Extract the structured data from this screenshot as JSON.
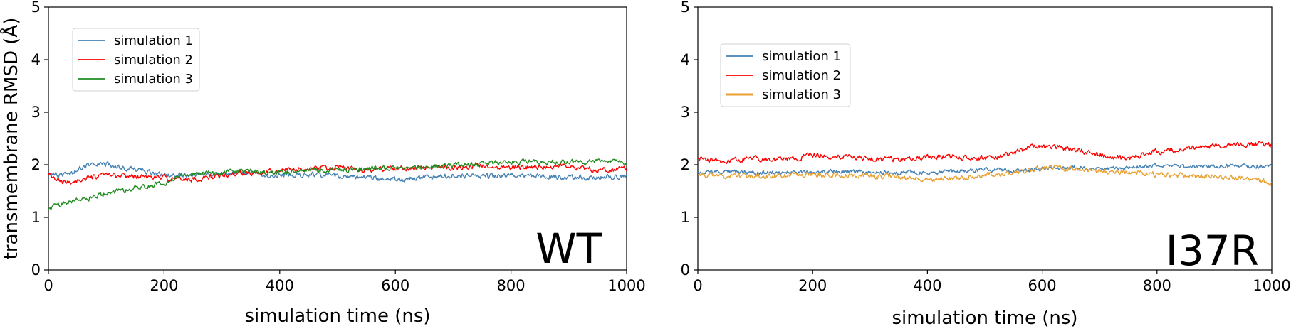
{
  "chart_data": [
    {
      "type": "line",
      "panel_label": "WT",
      "xlabel": "simulation time (ns)",
      "ylabel": "transmembrane RMSD (Å)",
      "xlim": [
        0,
        1000
      ],
      "ylim": [
        0,
        5
      ],
      "xticks": [
        0,
        200,
        400,
        600,
        800,
        1000
      ],
      "yticks": [
        0,
        1,
        2,
        3,
        4,
        5
      ],
      "grid": false,
      "legend_position": "top-left",
      "series": [
        {
          "name": "simulation 1",
          "color": "#4682b4",
          "noise": 0.06,
          "x": [
            0,
            20,
            40,
            60,
            80,
            100,
            130,
            160,
            200,
            250,
            300,
            350,
            400,
            450,
            500,
            550,
            600,
            650,
            700,
            750,
            800,
            850,
            900,
            950,
            1000
          ],
          "y": [
            1.85,
            1.8,
            1.85,
            1.95,
            2.05,
            2.0,
            1.95,
            1.9,
            1.8,
            1.8,
            1.82,
            1.85,
            1.8,
            1.82,
            1.78,
            1.75,
            1.72,
            1.75,
            1.8,
            1.78,
            1.8,
            1.78,
            1.76,
            1.75,
            1.78
          ]
        },
        {
          "name": "simulation 2",
          "color": "#ff0000",
          "noise": 0.06,
          "x": [
            0,
            25,
            50,
            100,
            150,
            200,
            250,
            300,
            350,
            400,
            450,
            500,
            550,
            600,
            650,
            700,
            750,
            800,
            850,
            900,
            950,
            1000
          ],
          "y": [
            1.8,
            1.65,
            1.7,
            1.8,
            1.78,
            1.75,
            1.72,
            1.8,
            1.85,
            1.9,
            1.92,
            1.95,
            1.9,
            1.92,
            1.95,
            1.95,
            1.98,
            1.95,
            1.95,
            1.98,
            1.9,
            1.92
          ]
        },
        {
          "name": "simulation 3",
          "color": "#228b22",
          "noise": 0.06,
          "x": [
            0,
            30,
            60,
            100,
            150,
            200,
            230,
            260,
            300,
            350,
            400,
            450,
            500,
            550,
            600,
            650,
            700,
            750,
            800,
            850,
            900,
            950,
            1000
          ],
          "y": [
            1.15,
            1.3,
            1.35,
            1.45,
            1.55,
            1.65,
            1.8,
            1.85,
            1.85,
            1.88,
            1.85,
            1.9,
            1.9,
            1.92,
            1.95,
            1.95,
            2.0,
            2.02,
            2.05,
            2.05,
            2.05,
            2.05,
            2.05
          ]
        }
      ]
    },
    {
      "type": "line",
      "panel_label": "I37R",
      "xlabel": "simulation time (ns)",
      "ylabel": "",
      "xlim": [
        0,
        1000
      ],
      "ylim": [
        0,
        5
      ],
      "xticks": [
        0,
        200,
        400,
        600,
        800,
        1000
      ],
      "yticks": [
        0,
        1,
        2,
        3,
        4,
        5
      ],
      "grid": false,
      "legend_position": "top-left",
      "series": [
        {
          "name": "simulation 1",
          "color": "#4682b4",
          "noise": 0.05,
          "x": [
            0,
            50,
            100,
            150,
            200,
            250,
            300,
            350,
            400,
            450,
            500,
            550,
            600,
            650,
            700,
            750,
            800,
            850,
            900,
            950,
            1000
          ],
          "y": [
            1.85,
            1.88,
            1.85,
            1.85,
            1.85,
            1.88,
            1.85,
            1.85,
            1.85,
            1.88,
            1.9,
            1.88,
            1.92,
            1.95,
            1.92,
            1.95,
            1.98,
            1.95,
            1.98,
            1.98,
            1.95
          ]
        },
        {
          "name": "simulation 2",
          "color": "#ff0000",
          "noise": 0.06,
          "x": [
            0,
            50,
            100,
            150,
            200,
            250,
            300,
            350,
            400,
            450,
            500,
            550,
            580,
            600,
            650,
            700,
            750,
            800,
            850,
            900,
            950,
            1000
          ],
          "y": [
            2.1,
            2.08,
            2.12,
            2.1,
            2.18,
            2.15,
            2.12,
            2.1,
            2.15,
            2.15,
            2.12,
            2.2,
            2.35,
            2.35,
            2.3,
            2.2,
            2.1,
            2.25,
            2.3,
            2.35,
            2.4,
            2.38
          ]
        },
        {
          "name": "simulation 3",
          "color": "#e8a030",
          "noise": 0.06,
          "x": [
            0,
            50,
            100,
            150,
            200,
            250,
            300,
            350,
            400,
            450,
            500,
            550,
            600,
            650,
            700,
            750,
            800,
            850,
            900,
            950,
            1000
          ],
          "y": [
            1.8,
            1.78,
            1.78,
            1.8,
            1.82,
            1.8,
            1.78,
            1.78,
            1.72,
            1.75,
            1.8,
            1.85,
            1.95,
            1.92,
            1.88,
            1.85,
            1.82,
            1.8,
            1.78,
            1.75,
            1.65
          ]
        }
      ]
    }
  ]
}
